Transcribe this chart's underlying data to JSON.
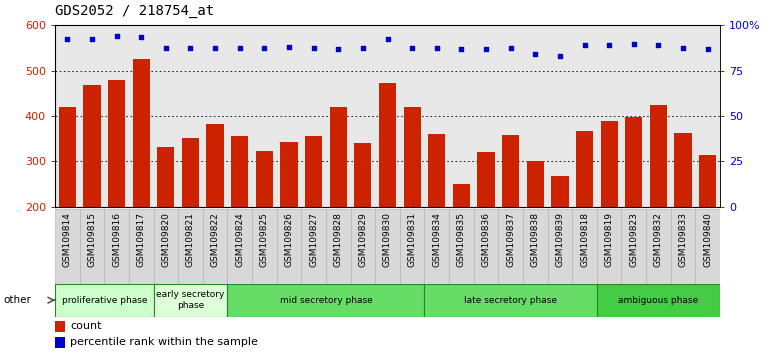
{
  "title": "GDS2052 / 218754_at",
  "samples": [
    "GSM109814",
    "GSM109815",
    "GSM109816",
    "GSM109817",
    "GSM109820",
    "GSM109821",
    "GSM109822",
    "GSM109824",
    "GSM109825",
    "GSM109826",
    "GSM109827",
    "GSM109828",
    "GSM109829",
    "GSM109830",
    "GSM109831",
    "GSM109834",
    "GSM109835",
    "GSM109836",
    "GSM109837",
    "GSM109838",
    "GSM109839",
    "GSM109818",
    "GSM109819",
    "GSM109823",
    "GSM109832",
    "GSM109833",
    "GSM109840"
  ],
  "counts": [
    420,
    468,
    480,
    525,
    332,
    352,
    382,
    355,
    322,
    343,
    357,
    420,
    340,
    472,
    420,
    360,
    250,
    320,
    358,
    302,
    267,
    368,
    390,
    398,
    425,
    362,
    315
  ],
  "pct_dot_y": [
    570,
    570,
    575,
    573,
    550,
    550,
    550,
    550,
    550,
    552,
    550,
    548,
    550,
    570,
    550,
    550,
    548,
    548,
    550,
    536,
    533,
    556,
    556,
    558,
    556,
    550,
    548
  ],
  "ylim": [
    200,
    600
  ],
  "yticks_left": [
    200,
    300,
    400,
    500,
    600
  ],
  "yticks_right_vals": [
    200,
    300,
    400,
    500,
    600
  ],
  "yticks_right_labels": [
    "0",
    "25",
    "50",
    "75",
    "100%"
  ],
  "bar_color": "#cc2200",
  "dot_color": "#0000cc",
  "phases": [
    {
      "label": "proliferative phase",
      "start": 0,
      "end": 4,
      "color": "#ccffcc"
    },
    {
      "label": "early secretory\nphase",
      "start": 4,
      "end": 7,
      "color": "#ddffd8"
    },
    {
      "label": "mid secretory phase",
      "start": 7,
      "end": 15,
      "color": "#66dd66"
    },
    {
      "label": "late secretory phase",
      "start": 15,
      "end": 22,
      "color": "#66dd66"
    },
    {
      "label": "ambiguous phase",
      "start": 22,
      "end": 27,
      "color": "#44cc44"
    }
  ],
  "legend_count_label": "count",
  "legend_percentile_label": "percentile rank within the sample",
  "title_fontsize": 10,
  "tick_fontsize": 6.5,
  "xtick_bg": "#d8d8d8"
}
